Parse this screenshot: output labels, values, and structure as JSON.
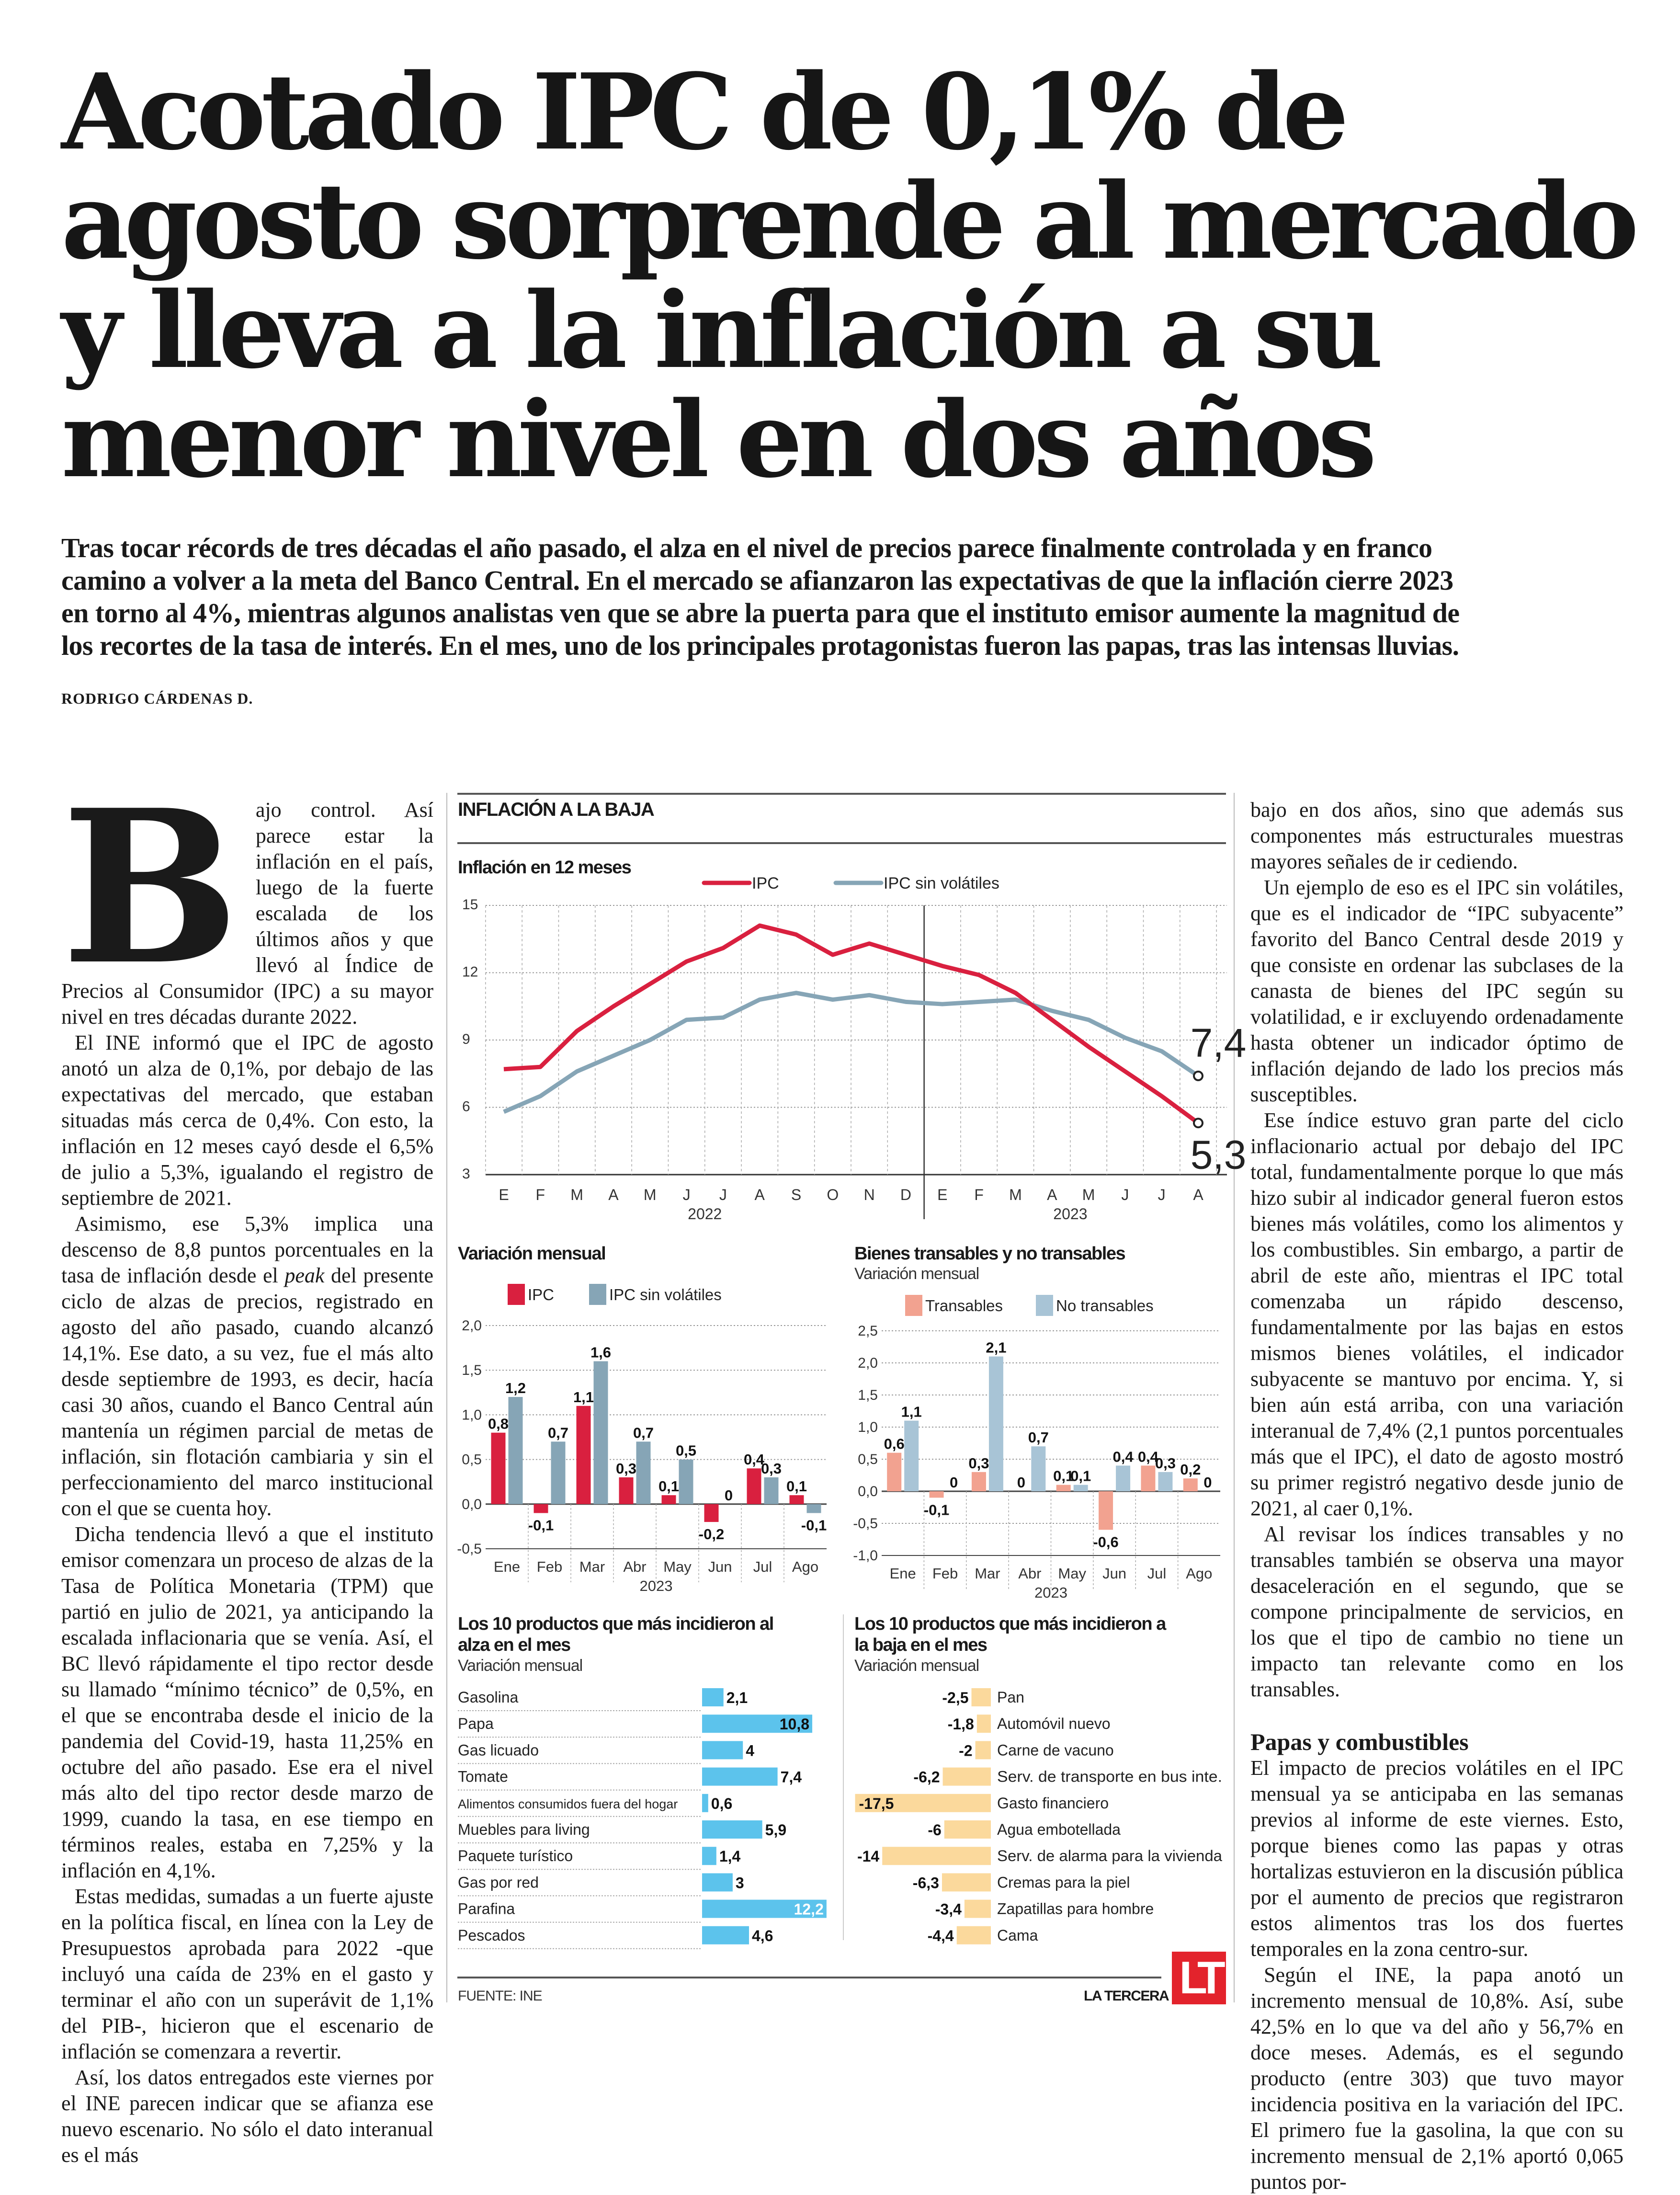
{
  "headline": {
    "lines": [
      "Acotado IPC de 0,1% de",
      "agosto sorprende al mercado",
      "y lleva a la inflación a su",
      "menor nivel en dos años"
    ]
  },
  "lead": {
    "lines": [
      "Tras tocar récords de tres décadas el año pasado, el alza en el nivel de precios parece finalmente controlada y en franco",
      "camino a volver a la meta del Banco Central. En el mercado se afianzaron las expectativas de que la inflación cierre 2023",
      "en torno al 4%, mientras algunos analistas ven que se abre la puerta para que el instituto emisor aumente la magnitud de",
      "los recortes de la tasa de interés. En el mes, uno de los principales protagonistas fueron las papas, tras las intensas lluvias."
    ]
  },
  "byline": "RODRIGO CÁRDENAS D.",
  "body": {
    "dropcap": "B",
    "left": {
      "p1": "ajo control. Así parece estar la inflación en el país, luego de la fuerte escalada de los últimos años y que llevó al Índice de Precios al Consumidor (IPC) a su mayor nivel en tres décadas durante 2022.",
      "p2": "El INE informó que el IPC de agosto anotó un alza de 0,1%, por debajo de las expectativas del mercado, que estaban situadas más cerca de 0,4%. Con esto, la inflación en 12 meses cayó desde el 6,5% de julio a 5,3%, igualando el registro de septiembre de 2021.",
      "p3a": "Asimismo, ese 5,3% implica una descenso de 8,8 puntos porcentuales en la tasa de inflación desde el ",
      "p3i": "peak",
      "p3b": " del presente ciclo de alzas de precios, registrado en agosto del año pasado, cuando alcanzó 14,1%. Ese dato, a su vez, fue el más alto desde septiembre de 1993, es decir, hacía casi 30 años, cuando el Banco Central aún mantenía un régimen parcial de metas de inflación, sin flotación cambiaria y sin el perfeccionamiento del marco institucional con el que se cuenta hoy.",
      "p4": "Dicha tendencia llevó a que el instituto emisor comenzara un proceso de alzas de la Tasa de Política Monetaria (TPM) que partió en julio de 2021, ya anticipando la escalada inflacionaria que se venía. Así, el BC llevó rápidamente el tipo rector desde su llamado “mínimo técnico” de 0,5%, en el que se encontraba desde el inicio de la pandemia del Covid-19, hasta 11,25% en octubre del año pasado. Ese era el nivel más alto del tipo rector desde marzo de 1999, cuando la tasa, en ese tiempo en términos reales, estaba en 7,25% y la inflación en 4,1%.",
      "p5": "Estas medidas, sumadas a un fuerte ajuste en la política fiscal, en línea con la Ley de Presupuestos aprobada para 2022 -que incluyó una caída de 23% en el gasto y terminar el año con un superávit de 1,1% del PIB-, hicieron que el escenario de inflación se comenzara a revertir.",
      "p6": "Así, los datos entregados este viernes por el INE parecen indicar que se afianza ese nuevo escenario. No sólo el dato interanual es el más"
    },
    "right": {
      "p1": "bajo en dos años, sino que además sus componentes más estructurales muestras mayores señales de ir cediendo.",
      "p2": "Un ejemplo de eso es el IPC sin volátiles, que es el indicador de “IPC subyacente” favorito del Banco Central desde 2019 y que consiste en ordenar las subclases de la canasta de bienes del IPC según su volatilidad, e ir excluyendo ordenadamente hasta obtener un indicador óptimo de inflación dejando de lado los precios más susceptibles.",
      "p3": "Ese índice estuvo gran parte del ciclo inflacionario actual por debajo del IPC total, fundamentalmente porque lo que más hizo subir al indicador general fueron estos bienes más volátiles, como los alimentos y los combustibles. Sin embargo, a partir de abril de este año, mientras el IPC total comenzaba un rápido descenso, fundamentalmente por las bajas en estos mismos bienes volátiles, el indicador subyacente se mantuvo por encima. Y, si bien aún está arriba, con una variación interanual de 7,4% (2,1 puntos porcentuales más que el IPC), el dato de agosto mostró su primer registró negativo desde junio de 2021, al caer 0,1%.",
      "p4": "Al revisar los índices transables y no transables también se observa una mayor desaceleración en el segundo, que se compone principalmente de servicios, en los que el tipo de cambio no tiene un impacto tan relevante como en los transables.",
      "subheading": "Papas y combustibles",
      "p5": "El impacto de precios volátiles en el IPC mensual ya se anticipaba en las semanas previos al informe de este viernes. Esto, porque bienes como las papas y otras hortalizas estuvieron en la discusión pública por el aumento de precios que registraron estos alimentos tras los dos fuertes temporales en la zona centro-sur.",
      "p6": "Según el INE, la papa anotó un incremento mensual de 10,8%. Así, sube 42,5% en lo que va del año y 56,7% en doce meses. Además, es el segundo producto (entre 303) que tuvo mayor incidencia positiva en la variación del IPC. El primero fue la gasolina, la que con su incremento mensual de 2,1% aportó 0,065 puntos por-"
    }
  },
  "graphic": {
    "title": "INFLACIÓN A LA BAJA",
    "source": "FUENTE: INE",
    "brand": "LA TERCERA",
    "logo": "LT"
  },
  "colors": {
    "ipc": "#d9203f",
    "ipc_sin_volatiles": "#86a5b6",
    "transables": "#f2a290",
    "no_transables": "#a8c4d6",
    "alza": "#5cc3ec",
    "baja": "#fbd99c",
    "logo": "#e3232c"
  },
  "chart_data": [
    {
      "type": "line",
      "title": "Inflación en 12 meses",
      "categories": [
        "E",
        "F",
        "M",
        "A",
        "M",
        "J",
        "J",
        "A",
        "S",
        "O",
        "N",
        "D",
        "E",
        "F",
        "M",
        "A",
        "M",
        "J",
        "J",
        "A"
      ],
      "year_labels": [
        "2022",
        "2023"
      ],
      "ylim": [
        3,
        15
      ],
      "yticks": [
        "15",
        "12",
        "9",
        "6",
        "3"
      ],
      "grid": true,
      "legend": "top",
      "series": [
        {
          "name": "IPC",
          "values": [
            7.7,
            7.8,
            9.4,
            10.5,
            11.5,
            12.5,
            13.1,
            14.1,
            13.7,
            12.8,
            13.3,
            12.8,
            12.3,
            11.9,
            11.1,
            9.9,
            8.7,
            7.6,
            6.5,
            5.3
          ],
          "end_label": "5,3"
        },
        {
          "name": "IPC sin volátiles",
          "values": [
            5.8,
            6.5,
            7.6,
            8.3,
            9.0,
            9.9,
            10.0,
            10.8,
            11.1,
            10.8,
            11.0,
            10.7,
            10.6,
            10.7,
            10.8,
            10.3,
            9.9,
            9.1,
            8.5,
            7.4
          ],
          "end_label": "7,4"
        }
      ]
    },
    {
      "type": "bar",
      "title": "Variación mensual",
      "categories": [
        "Ene",
        "Feb",
        "Mar",
        "Abr",
        "May",
        "Jun",
        "Jul",
        "Ago"
      ],
      "year_label": "2023",
      "ylim": [
        -0.5,
        2.0
      ],
      "yticks": [
        "2,0",
        "1,5",
        "1,0",
        "0,5",
        "0,0",
        "-0,5"
      ],
      "legend": "top",
      "series": [
        {
          "name": "IPC",
          "values": [
            0.8,
            -0.1,
            1.1,
            0.3,
            0.1,
            -0.2,
            0.4,
            0.1
          ],
          "labels": [
            "0,8",
            "-0,1",
            "1,1",
            "0,3",
            "0,1",
            "-0,2",
            "0,4",
            "0,1"
          ]
        },
        {
          "name": "IPC sin volátiles",
          "values": [
            1.2,
            0.7,
            1.6,
            0.7,
            0.5,
            0,
            0.3,
            -0.1
          ],
          "labels": [
            "1,2",
            "0,7",
            "1,6",
            "0,7",
            "0,5",
            "0",
            "0,3",
            "-0,1"
          ]
        }
      ]
    },
    {
      "type": "bar",
      "title": "Bienes transables y no transables",
      "subtitle": "Variación mensual",
      "categories": [
        "Ene",
        "Feb",
        "Mar",
        "Abr",
        "May",
        "Jun",
        "Jul",
        "Ago"
      ],
      "year_label": "2023",
      "ylim": [
        -1.0,
        2.5
      ],
      "yticks": [
        "2,5",
        "2,0",
        "1,5",
        "1,0",
        "0,5",
        "0,0",
        "-0,5",
        "-1,0"
      ],
      "legend": "top",
      "series": [
        {
          "name": "Transables",
          "values": [
            0.6,
            -0.1,
            0.3,
            0,
            0.1,
            -0.6,
            0.4,
            0.2
          ],
          "labels": [
            "0,6",
            "-0,1",
            "0,3",
            "0",
            "0,1",
            "-0,6",
            "0,4",
            "0,2"
          ]
        },
        {
          "name": "No transables",
          "values": [
            1.1,
            0,
            2.1,
            0.7,
            0.1,
            0.4,
            0.3,
            0
          ],
          "labels": [
            "1,1",
            "0",
            "2,1",
            "0,7",
            "0,1",
            "0,4",
            "0,3",
            "0"
          ]
        }
      ]
    },
    {
      "type": "bar",
      "orientation": "horizontal",
      "title": "Los 10 productos que más incidieron al alza en el mes",
      "subtitle": "Variación mensual",
      "categories": [
        "Gasolina",
        "Papa",
        "Gas licuado",
        "Tomate",
        "Alimentos consumidos fuera del hogar",
        "Muebles para living",
        "Paquete turístico",
        "Gas por red",
        "Parafina",
        "Pescados"
      ],
      "values": [
        2.1,
        10.8,
        4,
        7.4,
        0.6,
        5.9,
        1.4,
        3,
        12.2,
        4.6
      ],
      "labels": [
        "2,1",
        "10,8",
        "4",
        "7,4",
        "0,6",
        "5,9",
        "1,4",
        "3",
        "12,2",
        "4,6"
      ]
    },
    {
      "type": "bar",
      "orientation": "horizontal",
      "title": "Los 10 productos que más incidieron a la baja en el mes",
      "subtitle": "Variación mensual",
      "categories": [
        "Pan",
        "Automóvil nuevo",
        "Carne de vacuno",
        "Serv. de transporte en bus inte.",
        "Gasto financiero",
        "Agua embotellada",
        "Serv. de alarma para la vivienda",
        "Cremas para la piel",
        "Zapatillas para hombre",
        "Cama"
      ],
      "values": [
        -2.5,
        -1.8,
        -2,
        -6.2,
        -17.5,
        -6,
        -14,
        -6.3,
        -3.4,
        -4.4
      ],
      "labels": [
        "-2,5",
        "-1,8",
        "-2",
        "-6,2",
        "-17,5",
        "-6",
        "-14",
        "-6,3",
        "-3,4",
        "-4,4"
      ]
    }
  ]
}
